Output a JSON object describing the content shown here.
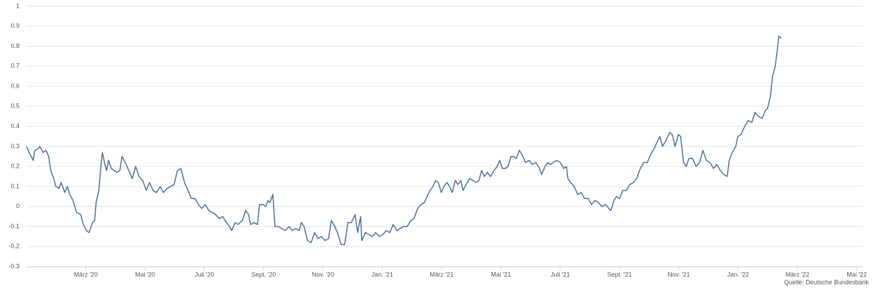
{
  "chart_data": {
    "type": "line",
    "credit": "Quelle: Deutsche Bundesbank",
    "color": "#4a6f9e",
    "grid": true,
    "xlim": [
      0,
      28.2
    ],
    "xticks": [
      {
        "value": 2,
        "label": "März '20"
      },
      {
        "value": 4,
        "label": "Mai '20"
      },
      {
        "value": 6,
        "label": "Juli '20"
      },
      {
        "value": 8,
        "label": "Sept. '20"
      },
      {
        "value": 10,
        "label": "Nov. '20"
      },
      {
        "value": 12,
        "label": "Jan. '21"
      },
      {
        "value": 14,
        "label": "März '21"
      },
      {
        "value": 16,
        "label": "Mai '21"
      },
      {
        "value": 18,
        "label": "Juli '21"
      },
      {
        "value": 20,
        "label": "Sept. '21"
      },
      {
        "value": 22,
        "label": "Nov. '21"
      },
      {
        "value": 24,
        "label": "Jan. '22"
      },
      {
        "value": 26,
        "label": "März '22"
      },
      {
        "value": 28,
        "label": "Mai '22"
      }
    ],
    "ylim": [
      -0.3,
      1
    ],
    "yticks": [
      -0.3,
      -0.2,
      -0.1,
      0,
      0.1,
      0.2,
      0.3,
      0.4,
      0.5,
      0.6,
      0.7,
      0.8,
      0.9,
      1
    ],
    "x": [
      0,
      0.09,
      0.23,
      0.28,
      0.4,
      0.45,
      0.56,
      0.66,
      0.75,
      0.82,
      0.92,
      0.99,
      1.1,
      1.17,
      1.29,
      1.38,
      1.46,
      1.57,
      1.69,
      1.83,
      1.92,
      2.02,
      2.11,
      2.23,
      2.3,
      2.35,
      2.44,
      2.51,
      2.56,
      2.63,
      2.7,
      2.77,
      2.86,
      2.96,
      3.05,
      3.15,
      3.22,
      3.33,
      3.45,
      3.57,
      3.68,
      3.8,
      3.92,
      4.04,
      4.15,
      4.27,
      4.39,
      4.51,
      4.62,
      4.74,
      4.86,
      4.98,
      5.09,
      5.21,
      5.33,
      5.45,
      5.56,
      5.68,
      5.8,
      5.91,
      6.03,
      6.15,
      6.27,
      6.38,
      6.5,
      6.62,
      6.74,
      6.85,
      6.92,
      7.04,
      7.13,
      7.28,
      7.39,
      7.49,
      7.56,
      7.67,
      7.79,
      7.86,
      7.98,
      8.07,
      8.14,
      8.21,
      8.31,
      8.38,
      8.5,
      8.61,
      8.73,
      8.85,
      8.97,
      9.08,
      9.2,
      9.27,
      9.36,
      9.48,
      9.6,
      9.72,
      9.83,
      9.95,
      10.07,
      10.19,
      10.28,
      10.4,
      10.51,
      10.61,
      10.73,
      10.84,
      10.96,
      11.08,
      11.17,
      11.27,
      11.31,
      11.43,
      11.55,
      11.66,
      11.78,
      11.9,
      12.02,
      12.13,
      12.25,
      12.37,
      12.49,
      12.6,
      12.72,
      12.84,
      12.96,
      13.07,
      13.19,
      13.31,
      13.42,
      13.54,
      13.61,
      13.71,
      13.8,
      13.89,
      13.99,
      14.08,
      14.18,
      14.27,
      14.36,
      14.46,
      14.55,
      14.65,
      14.72,
      14.83,
      14.95,
      15.07,
      15.16,
      15.26,
      15.35,
      15.44,
      15.54,
      15.65,
      15.77,
      15.87,
      15.96,
      16.05,
      16.15,
      16.24,
      16.34,
      16.43,
      16.52,
      16.62,
      16.71,
      16.83,
      16.95,
      17.06,
      17.18,
      17.3,
      17.37,
      17.49,
      17.58,
      17.67,
      17.77,
      17.88,
      18.0,
      18.12,
      18.21,
      18.26,
      18.35,
      18.47,
      18.59,
      18.71,
      18.82,
      18.94,
      19.06,
      19.17,
      19.29,
      19.41,
      19.53,
      19.64,
      19.71,
      19.81,
      19.9,
      20.0,
      20.11,
      20.23,
      20.35,
      20.47,
      20.58,
      20.7,
      20.82,
      20.94,
      21.05,
      21.17,
      21.29,
      21.36,
      21.45,
      21.57,
      21.69,
      21.78,
      21.87,
      21.99,
      22.06,
      22.16,
      22.25,
      22.34,
      22.46,
      22.58,
      22.7,
      22.81,
      22.93,
      23.05,
      23.17,
      23.28,
      23.4,
      23.52,
      23.63,
      23.7,
      23.8,
      23.92,
      23.99,
      24.1,
      24.22,
      24.34,
      24.46,
      24.57,
      24.69,
      24.81,
      24.92,
      24.99,
      25.09,
      25.16,
      25.25,
      25.32,
      25.37,
      25.46
    ],
    "values": [
      0.3,
      0.27,
      0.23,
      0.28,
      0.29,
      0.3,
      0.27,
      0.28,
      0.25,
      0.18,
      0.14,
      0.1,
      0.09,
      0.12,
      0.07,
      0.1,
      0.06,
      0.03,
      -0.03,
      -0.04,
      -0.09,
      -0.12,
      -0.13,
      -0.08,
      -0.07,
      0.02,
      0.08,
      0.2,
      0.27,
      0.22,
      0.18,
      0.23,
      0.19,
      0.18,
      0.17,
      0.18,
      0.25,
      0.22,
      0.18,
      0.14,
      0.2,
      0.15,
      0.13,
      0.08,
      0.12,
      0.08,
      0.07,
      0.1,
      0.07,
      0.09,
      0.1,
      0.11,
      0.18,
      0.19,
      0.12,
      0.08,
      0.04,
      0.04,
      0.01,
      -0.01,
      0.01,
      -0.02,
      -0.03,
      -0.04,
      -0.06,
      -0.05,
      -0.08,
      -0.1,
      -0.12,
      -0.08,
      -0.09,
      -0.07,
      -0.02,
      -0.04,
      -0.09,
      -0.08,
      -0.09,
      0.01,
      0.01,
      0,
      0.03,
      0.02,
      0.06,
      -0.1,
      -0.1,
      -0.11,
      -0.12,
      -0.1,
      -0.12,
      -0.11,
      -0.12,
      -0.08,
      -0.1,
      -0.17,
      -0.18,
      -0.13,
      -0.16,
      -0.15,
      -0.17,
      -0.16,
      -0.07,
      -0.1,
      -0.14,
      -0.19,
      -0.19,
      -0.08,
      -0.08,
      -0.04,
      -0.13,
      -0.05,
      -0.17,
      -0.13,
      -0.14,
      -0.15,
      -0.13,
      -0.15,
      -0.14,
      -0.12,
      -0.13,
      -0.09,
      -0.12,
      -0.11,
      -0.1,
      -0.1,
      -0.07,
      -0.06,
      -0.01,
      0.01,
      0.02,
      0.06,
      0.08,
      0.1,
      0.13,
      0.12,
      0.07,
      0.1,
      0.12,
      0.1,
      0.07,
      0.13,
      0.11,
      0.13,
      0.08,
      0.11,
      0.14,
      0.13,
      0.12,
      0.13,
      0.18,
      0.15,
      0.17,
      0.15,
      0.18,
      0.2,
      0.23,
      0.19,
      0.19,
      0.2,
      0.25,
      0.25,
      0.24,
      0.28,
      0.26,
      0.22,
      0.23,
      0.21,
      0.22,
      0.19,
      0.16,
      0.2,
      0.22,
      0.21,
      0.22,
      0.23,
      0.22,
      0.19,
      0.2,
      0.14,
      0.12,
      0.1,
      0.06,
      0.07,
      0.04,
      0.04,
      0.01,
      0.03,
      0.02,
      0,
      0.01,
      -0.01,
      -0.02,
      0.03,
      0.05,
      0.04,
      0.08,
      0.08,
      0.11,
      0.12,
      0.14,
      0.19,
      0.22,
      0.22,
      0.26,
      0.29,
      0.33,
      0.35,
      0.3,
      0.33,
      0.37,
      0.36,
      0.3,
      0.36,
      0.35,
      0.22,
      0.2,
      0.24,
      0.24,
      0.2,
      0.22,
      0.28,
      0.23,
      0.22,
      0.19,
      0.21,
      0.18,
      0.16,
      0.15,
      0.23,
      0.27,
      0.3,
      0.35,
      0.36,
      0.4,
      0.43,
      0.42,
      0.47,
      0.45,
      0.44,
      0.48,
      0.49,
      0.55,
      0.65,
      0.7,
      0.78,
      0.85,
      0.84
    ]
  }
}
